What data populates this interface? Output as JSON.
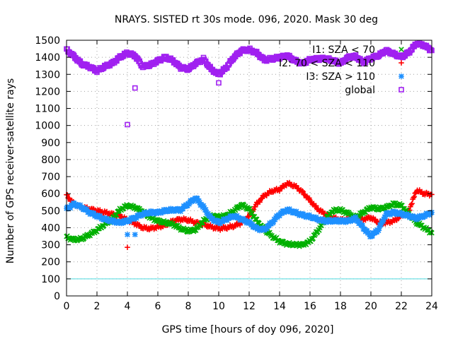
{
  "chart_data": {
    "type": "scatter",
    "title": "NRAYS. SISTED rt 30s mode. 096, 2020. Mask 30 deg",
    "xlabel": "GPS time [hours of doy 096, 2020]",
    "ylabel": "Number of GPS receiver-satellite rays",
    "xlim": [
      0,
      24
    ],
    "ylim": [
      0,
      1500
    ],
    "xticks": [
      "0",
      "2",
      "4",
      "6",
      "8",
      "10",
      "12",
      "14",
      "16",
      "18",
      "20",
      "22",
      "24"
    ],
    "yticks": [
      "0",
      "100",
      "200",
      "300",
      "400",
      "500",
      "600",
      "700",
      "800",
      "900",
      "1000",
      "1100",
      "1200",
      "1300",
      "1400",
      "1500"
    ],
    "grid": true,
    "legend_position": "top-right",
    "reference_line": {
      "y": 100,
      "color": "#4fd9df"
    },
    "series": [
      {
        "name": "I1: SZA < 70",
        "color": "#00b000",
        "marker": "x",
        "points": [
          [
            0,
            345
          ],
          [
            0.5,
            330
          ],
          [
            1,
            335
          ],
          [
            1.5,
            360
          ],
          [
            2,
            385
          ],
          [
            2.5,
            420
          ],
          [
            3,
            450
          ],
          [
            3.5,
            505
          ],
          [
            4,
            530
          ],
          [
            4.5,
            520
          ],
          [
            5,
            495
          ],
          [
            5.5,
            460
          ],
          [
            6,
            440
          ],
          [
            6.5,
            430
          ],
          [
            7,
            420
          ],
          [
            7.5,
            395
          ],
          [
            8,
            380
          ],
          [
            8.5,
            390
          ],
          [
            9,
            440
          ],
          [
            9.5,
            470
          ],
          [
            10,
            465
          ],
          [
            10.5,
            470
          ],
          [
            11,
            500
          ],
          [
            11.5,
            535
          ],
          [
            12,
            510
          ],
          [
            12.5,
            440
          ],
          [
            13,
            390
          ],
          [
            13.5,
            350
          ],
          [
            14,
            320
          ],
          [
            14.5,
            305
          ],
          [
            15,
            300
          ],
          [
            15.5,
            300
          ],
          [
            16,
            320
          ],
          [
            16.5,
            380
          ],
          [
            17,
            450
          ],
          [
            17.5,
            500
          ],
          [
            18,
            505
          ],
          [
            18.5,
            485
          ],
          [
            19,
            460
          ],
          [
            19.5,
            490
          ],
          [
            20,
            520
          ],
          [
            20.5,
            510
          ],
          [
            21,
            520
          ],
          [
            21.5,
            540
          ],
          [
            22,
            530
          ],
          [
            22.5,
            480
          ],
          [
            23,
            430
          ],
          [
            23.5,
            400
          ],
          [
            24,
            370
          ]
        ]
      },
      {
        "name": "I2: 70 < SZA < 110",
        "color": "#ff0000",
        "marker": "+",
        "points": [
          [
            0,
            590
          ],
          [
            0.5,
            540
          ],
          [
            1,
            520
          ],
          [
            1.5,
            510
          ],
          [
            2,
            500
          ],
          [
            2.5,
            490
          ],
          [
            3,
            480
          ],
          [
            3.5,
            470
          ],
          [
            4,
            445
          ],
          [
            4.5,
            425
          ],
          [
            5,
            400
          ],
          [
            5.5,
            395
          ],
          [
            6,
            405
          ],
          [
            6.5,
            415
          ],
          [
            7,
            440
          ],
          [
            7.5,
            450
          ],
          [
            8,
            445
          ],
          [
            8.5,
            430
          ],
          [
            9,
            420
          ],
          [
            9.5,
            405
          ],
          [
            10,
            395
          ],
          [
            10.5,
            400
          ],
          [
            11,
            410
          ],
          [
            11.5,
            430
          ],
          [
            12,
            470
          ],
          [
            12.5,
            540
          ],
          [
            13,
            590
          ],
          [
            13.5,
            615
          ],
          [
            14,
            625
          ],
          [
            14.5,
            660
          ],
          [
            15,
            645
          ],
          [
            15.5,
            610
          ],
          [
            16,
            560
          ],
          [
            16.5,
            510
          ],
          [
            17,
            480
          ],
          [
            17.5,
            460
          ],
          [
            18,
            445
          ],
          [
            18.5,
            450
          ],
          [
            19,
            455
          ],
          [
            19.5,
            450
          ],
          [
            20,
            460
          ],
          [
            20.5,
            430
          ],
          [
            21,
            430
          ],
          [
            21.5,
            440
          ],
          [
            22,
            470
          ],
          [
            22.5,
            500
          ],
          [
            23,
            620
          ],
          [
            23.5,
            600
          ],
          [
            24,
            595
          ]
        ]
      },
      {
        "name": "I3: SZA > 110",
        "color": "#1e90ff",
        "marker": "*",
        "points": [
          [
            0,
            510
          ],
          [
            0.5,
            540
          ],
          [
            1,
            520
          ],
          [
            1.5,
            490
          ],
          [
            2,
            470
          ],
          [
            2.5,
            450
          ],
          [
            3,
            440
          ],
          [
            3.5,
            430
          ],
          [
            4,
            440
          ],
          [
            4.5,
            460
          ],
          [
            5,
            480
          ],
          [
            5.5,
            490
          ],
          [
            6,
            490
          ],
          [
            6.5,
            500
          ],
          [
            7,
            505
          ],
          [
            7.5,
            505
          ],
          [
            8,
            540
          ],
          [
            8.5,
            575
          ],
          [
            9,
            520
          ],
          [
            9.5,
            455
          ],
          [
            10,
            430
          ],
          [
            10.5,
            450
          ],
          [
            11,
            470
          ],
          [
            11.5,
            450
          ],
          [
            12,
            430
          ],
          [
            12.5,
            395
          ],
          [
            13,
            390
          ],
          [
            13.5,
            430
          ],
          [
            14,
            480
          ],
          [
            14.5,
            505
          ],
          [
            15,
            490
          ],
          [
            15.5,
            475
          ],
          [
            16,
            465
          ],
          [
            16.5,
            450
          ],
          [
            17,
            440
          ],
          [
            17.5,
            440
          ],
          [
            18,
            440
          ],
          [
            18.5,
            440
          ],
          [
            19,
            455
          ],
          [
            19.5,
            400
          ],
          [
            20,
            350
          ],
          [
            20.5,
            390
          ],
          [
            21,
            480
          ],
          [
            21.5,
            490
          ],
          [
            22,
            480
          ],
          [
            22.5,
            470
          ],
          [
            23,
            455
          ],
          [
            23.5,
            470
          ],
          [
            24,
            490
          ]
        ]
      },
      {
        "name": "global",
        "color": "#a020f0",
        "marker": "square",
        "points": [
          [
            0,
            1445
          ],
          [
            0.5,
            1405
          ],
          [
            1,
            1360
          ],
          [
            1.5,
            1345
          ],
          [
            2,
            1320
          ],
          [
            2.5,
            1345
          ],
          [
            3,
            1365
          ],
          [
            3.5,
            1400
          ],
          [
            4,
            1425
          ],
          [
            4.5,
            1410
          ],
          [
            5,
            1345
          ],
          [
            5.5,
            1355
          ],
          [
            6,
            1380
          ],
          [
            6.5,
            1400
          ],
          [
            7,
            1380
          ],
          [
            7.5,
            1340
          ],
          [
            8,
            1330
          ],
          [
            8.5,
            1365
          ],
          [
            9,
            1390
          ],
          [
            9.5,
            1330
          ],
          [
            10,
            1300
          ],
          [
            10.5,
            1340
          ],
          [
            11,
            1400
          ],
          [
            11.5,
            1440
          ],
          [
            12,
            1445
          ],
          [
            12.5,
            1425
          ],
          [
            13,
            1385
          ],
          [
            13.5,
            1390
          ],
          [
            14,
            1400
          ],
          [
            14.5,
            1410
          ],
          [
            15,
            1380
          ],
          [
            15.5,
            1365
          ],
          [
            16,
            1385
          ],
          [
            16.5,
            1390
          ],
          [
            17,
            1395
          ],
          [
            17.5,
            1380
          ],
          [
            18,
            1365
          ],
          [
            18.5,
            1400
          ],
          [
            19,
            1405
          ],
          [
            19.5,
            1370
          ],
          [
            20,
            1395
          ],
          [
            20.5,
            1410
          ],
          [
            21,
            1440
          ],
          [
            21.5,
            1420
          ],
          [
            22,
            1400
          ],
          [
            22.5,
            1430
          ],
          [
            23,
            1480
          ],
          [
            23.5,
            1470
          ],
          [
            24,
            1440
          ]
        ],
        "outliers": [
          [
            4,
            1005
          ],
          [
            4.5,
            1220
          ],
          [
            10,
            1250
          ]
        ]
      }
    ],
    "extra_points": [
      {
        "series": "I3: SZA > 110",
        "x": 4,
        "y": 360
      },
      {
        "series": "I3: SZA > 110",
        "x": 4.5,
        "y": 360
      },
      {
        "series": "I2: 70 < SZA < 110",
        "x": 4,
        "y": 285
      }
    ]
  }
}
